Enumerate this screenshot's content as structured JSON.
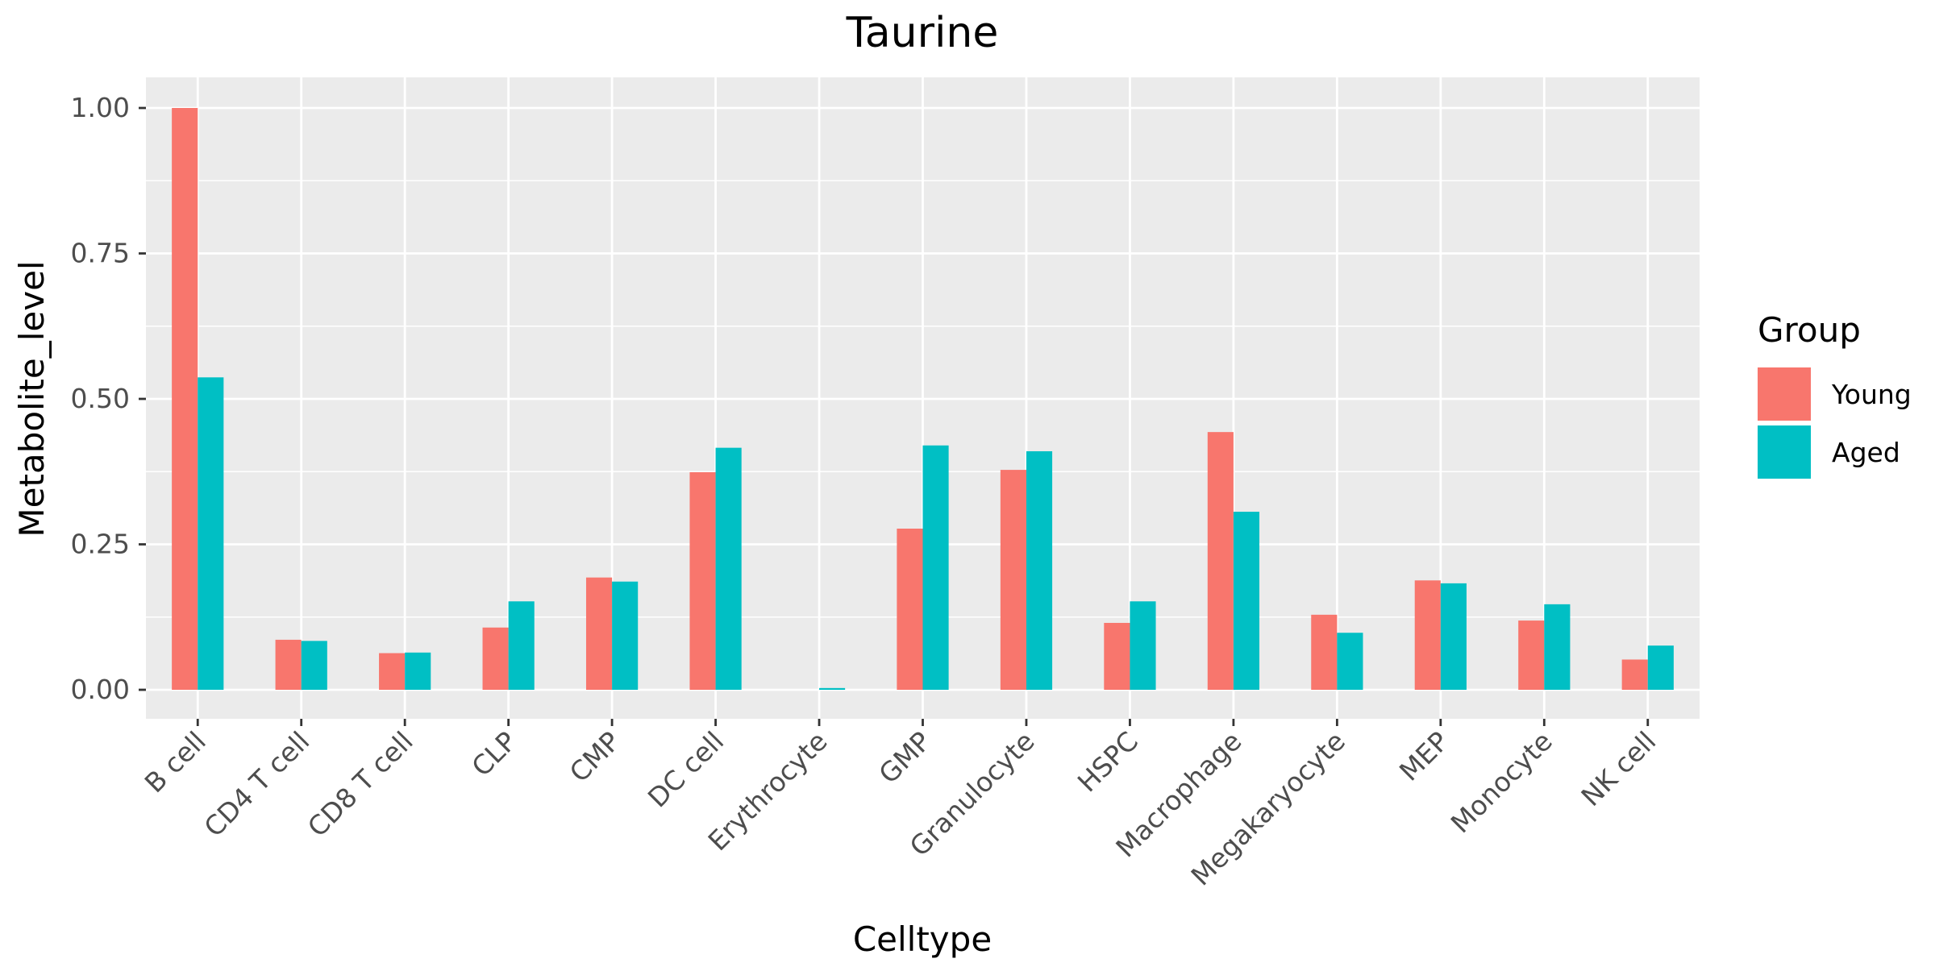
{
  "chart_data": {
    "type": "bar",
    "title": "Taurine",
    "xlabel": "Celltype",
    "ylabel": "Metabolite_level",
    "categories": [
      "B cell",
      "CD4 T cell",
      "CD8 T cell",
      "CLP",
      "CMP",
      "DC cell",
      "Erythrocyte",
      "GMP",
      "Granulocyte",
      "HSPC",
      "Macrophage",
      "Megakaryocyte",
      "MEP",
      "Monocyte",
      "NK cell"
    ],
    "series": [
      {
        "name": "Young",
        "color": "#F8766D",
        "values": [
          1.0,
          0.086,
          0.063,
          0.107,
          0.193,
          0.374,
          0.0,
          0.277,
          0.378,
          0.115,
          0.443,
          0.129,
          0.188,
          0.119,
          0.052
        ]
      },
      {
        "name": "Aged",
        "color": "#00BFC4",
        "values": [
          0.537,
          0.084,
          0.064,
          0.152,
          0.186,
          0.416,
          0.003,
          0.42,
          0.41,
          0.152,
          0.306,
          0.098,
          0.183,
          0.147,
          0.076
        ]
      }
    ],
    "ylim": [
      -0.05,
      1.05
    ],
    "yticks": [
      0.0,
      0.25,
      0.5,
      0.75,
      1.0
    ],
    "ytick_labels": [
      "0.00",
      "0.25",
      "0.50",
      "0.75",
      "1.00"
    ],
    "grid": true,
    "legend": {
      "title": "Group",
      "placement": "right"
    }
  }
}
